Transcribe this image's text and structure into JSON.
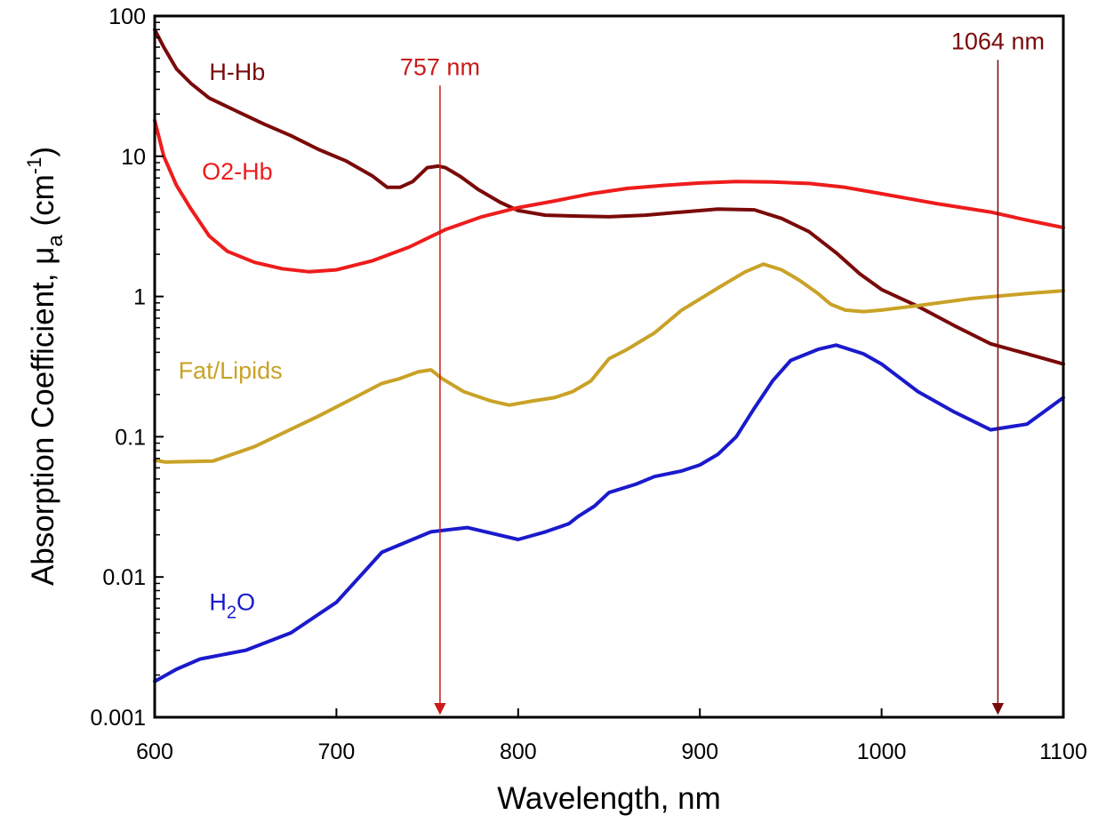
{
  "chart_data": {
    "type": "line",
    "xlabel": "Wavelength, nm",
    "ylabel": {
      "main": "Absorption Coefficient, μ",
      "sub": "a",
      "unit_open": " (cm",
      "unit_sup": "-1",
      "unit_close": ")"
    },
    "xlim": [
      600,
      1100
    ],
    "ylim": [
      0.001,
      100
    ],
    "yscale": "log",
    "grid": false,
    "x_ticks": [
      600,
      700,
      800,
      900,
      1000,
      1100
    ],
    "x_tick_labels": [
      "600",
      "700",
      "800",
      "900",
      "1000",
      "1100"
    ],
    "y_ticks": [
      0.001,
      0.01,
      0.1,
      1,
      10,
      100
    ],
    "y_tick_labels": [
      "0.001",
      "0.01",
      "0.1",
      "1",
      "10",
      "100"
    ],
    "series": [
      {
        "id": "hhb",
        "label": "H-Hb",
        "color": "#7a0a0a",
        "label_at": [
          630,
          35
        ],
        "points": [
          [
            600,
            80
          ],
          [
            605,
            60
          ],
          [
            612,
            42
          ],
          [
            620,
            33
          ],
          [
            630,
            26
          ],
          [
            645,
            21
          ],
          [
            660,
            17
          ],
          [
            675,
            14
          ],
          [
            690,
            11.2
          ],
          [
            705,
            9.3
          ],
          [
            720,
            7.2
          ],
          [
            728,
            6.0
          ],
          [
            735,
            6.0
          ],
          [
            742,
            6.6
          ],
          [
            750,
            8.3
          ],
          [
            756,
            8.5
          ],
          [
            760,
            8.3
          ],
          [
            768,
            7.2
          ],
          [
            778,
            5.8
          ],
          [
            790,
            4.7
          ],
          [
            800,
            4.1
          ],
          [
            815,
            3.8
          ],
          [
            830,
            3.75
          ],
          [
            850,
            3.7
          ],
          [
            870,
            3.8
          ],
          [
            890,
            4.0
          ],
          [
            910,
            4.2
          ],
          [
            930,
            4.15
          ],
          [
            945,
            3.6
          ],
          [
            960,
            2.9
          ],
          [
            975,
            2.05
          ],
          [
            988,
            1.45
          ],
          [
            1000,
            1.12
          ],
          [
            1020,
            0.85
          ],
          [
            1040,
            0.62
          ],
          [
            1060,
            0.46
          ],
          [
            1080,
            0.39
          ],
          [
            1100,
            0.33
          ]
        ]
      },
      {
        "id": "o2hb",
        "label": "O2-Hb",
        "color": "#ee1c1c",
        "label_at": [
          626,
          6.8
        ],
        "points": [
          [
            600,
            18
          ],
          [
            605,
            10
          ],
          [
            612,
            6.2
          ],
          [
            620,
            4.2
          ],
          [
            630,
            2.7
          ],
          [
            640,
            2.1
          ],
          [
            655,
            1.75
          ],
          [
            670,
            1.58
          ],
          [
            685,
            1.5
          ],
          [
            700,
            1.55
          ],
          [
            720,
            1.8
          ],
          [
            740,
            2.25
          ],
          [
            760,
            3.0
          ],
          [
            780,
            3.7
          ],
          [
            800,
            4.3
          ],
          [
            820,
            4.8
          ],
          [
            840,
            5.4
          ],
          [
            860,
            5.9
          ],
          [
            880,
            6.2
          ],
          [
            900,
            6.45
          ],
          [
            920,
            6.6
          ],
          [
            940,
            6.55
          ],
          [
            960,
            6.4
          ],
          [
            980,
            6.0
          ],
          [
            1000,
            5.4
          ],
          [
            1030,
            4.6
          ],
          [
            1060,
            4.0
          ],
          [
            1080,
            3.5
          ],
          [
            1100,
            3.1
          ]
        ]
      },
      {
        "id": "fat",
        "label": "Fat/Lipids",
        "color": "#c9a227",
        "label_at": [
          613,
          0.26
        ],
        "points": [
          [
            600,
            0.068
          ],
          [
            606,
            0.066
          ],
          [
            632,
            0.067
          ],
          [
            655,
            0.085
          ],
          [
            690,
            0.14
          ],
          [
            710,
            0.19
          ],
          [
            725,
            0.24
          ],
          [
            735,
            0.26
          ],
          [
            745,
            0.29
          ],
          [
            752,
            0.3
          ],
          [
            758,
            0.26
          ],
          [
            770,
            0.21
          ],
          [
            785,
            0.18
          ],
          [
            795,
            0.168
          ],
          [
            808,
            0.18
          ],
          [
            820,
            0.19
          ],
          [
            830,
            0.21
          ],
          [
            840,
            0.25
          ],
          [
            850,
            0.36
          ],
          [
            860,
            0.42
          ],
          [
            875,
            0.55
          ],
          [
            890,
            0.8
          ],
          [
            910,
            1.15
          ],
          [
            925,
            1.5
          ],
          [
            935,
            1.7
          ],
          [
            945,
            1.55
          ],
          [
            955,
            1.3
          ],
          [
            965,
            1.05
          ],
          [
            972,
            0.88
          ],
          [
            980,
            0.8
          ],
          [
            990,
            0.78
          ],
          [
            1000,
            0.8
          ],
          [
            1020,
            0.86
          ],
          [
            1050,
            0.97
          ],
          [
            1080,
            1.05
          ],
          [
            1100,
            1.1
          ]
        ]
      },
      {
        "id": "water",
        "label_main": "H",
        "label_sub": "2",
        "label_end": "O",
        "color": "#1a1acc",
        "label_at": [
          630,
          0.0058
        ],
        "points": [
          [
            600,
            0.0018
          ],
          [
            612,
            0.0022
          ],
          [
            625,
            0.0026
          ],
          [
            650,
            0.003
          ],
          [
            675,
            0.004
          ],
          [
            700,
            0.0066
          ],
          [
            725,
            0.015
          ],
          [
            752,
            0.021
          ],
          [
            772,
            0.0225
          ],
          [
            800,
            0.0185
          ],
          [
            815,
            0.021
          ],
          [
            828,
            0.024
          ],
          [
            833,
            0.027
          ],
          [
            842,
            0.032
          ],
          [
            850,
            0.04
          ],
          [
            865,
            0.046
          ],
          [
            875,
            0.052
          ],
          [
            890,
            0.057
          ],
          [
            900,
            0.063
          ],
          [
            910,
            0.075
          ],
          [
            920,
            0.1
          ],
          [
            930,
            0.16
          ],
          [
            940,
            0.25
          ],
          [
            950,
            0.35
          ],
          [
            965,
            0.42
          ],
          [
            975,
            0.45
          ],
          [
            990,
            0.39
          ],
          [
            1000,
            0.33
          ],
          [
            1020,
            0.21
          ],
          [
            1040,
            0.15
          ],
          [
            1060,
            0.112
          ],
          [
            1080,
            0.123
          ],
          [
            1100,
            0.19
          ]
        ]
      }
    ],
    "annotations": [
      {
        "id": "m757",
        "label": "757 nm",
        "x": 757,
        "color": "#cc1a1a",
        "label_at": [
          757,
          38
        ]
      },
      {
        "id": "m1064",
        "label": "1064 nm",
        "x": 1064,
        "color": "#7a0a0a",
        "label_at": [
          1064,
          58
        ]
      }
    ]
  }
}
